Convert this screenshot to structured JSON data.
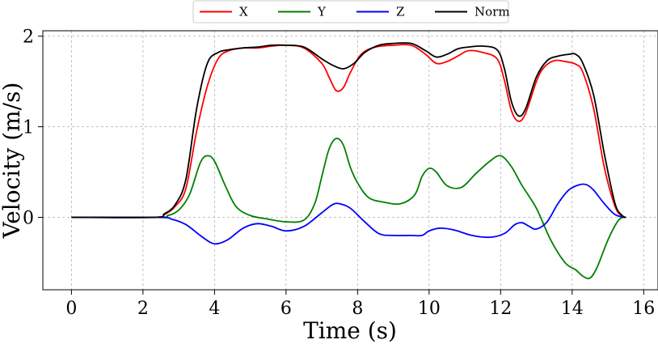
{
  "chart_data": {
    "type": "line",
    "title": "",
    "xlabel": "Time (s)",
    "ylabel": "Velocity (m/s)",
    "xlim": [
      -0.8,
      16.4
    ],
    "ylim": [
      -0.8,
      2.06
    ],
    "grid": true,
    "legend_position": "top-center",
    "xticks": [
      0,
      2,
      4,
      6,
      8,
      10,
      12,
      14,
      16
    ],
    "xtick_labels": [
      "0",
      "2",
      "4",
      "6",
      "8",
      "10",
      "12",
      "14",
      "16"
    ],
    "yticks": [
      0,
      1,
      2
    ],
    "ytick_labels": [
      "0",
      "1",
      "2"
    ],
    "series": [
      {
        "name": "X",
        "color": "#ff0000",
        "x": [
          0,
          2.3,
          2.6,
          2.9,
          3.2,
          3.5,
          3.8,
          4.1,
          4.4,
          4.8,
          5.2,
          5.6,
          6.0,
          6.5,
          7.0,
          7.2,
          7.4,
          7.6,
          7.8,
          8.1,
          8.5,
          9.0,
          9.5,
          9.9,
          10.2,
          10.5,
          10.8,
          11.1,
          11.5,
          11.9,
          12.1,
          12.3,
          12.5,
          12.7,
          13.0,
          13.2,
          13.5,
          13.8,
          14.1,
          14.3,
          14.6,
          14.9,
          15.2,
          15.4,
          15.5
        ],
        "y": [
          0,
          0,
          0.03,
          0.12,
          0.32,
          0.95,
          1.45,
          1.75,
          1.84,
          1.87,
          1.87,
          1.89,
          1.9,
          1.87,
          1.7,
          1.55,
          1.4,
          1.43,
          1.6,
          1.8,
          1.88,
          1.9,
          1.9,
          1.8,
          1.7,
          1.72,
          1.78,
          1.84,
          1.82,
          1.75,
          1.52,
          1.18,
          1.06,
          1.15,
          1.5,
          1.65,
          1.73,
          1.72,
          1.69,
          1.6,
          1.2,
          0.55,
          0.12,
          0.01,
          0
        ]
      },
      {
        "name": "Y",
        "color": "#008000",
        "x": [
          0,
          2.4,
          2.7,
          3.0,
          3.3,
          3.6,
          3.8,
          4.0,
          4.3,
          4.6,
          5.0,
          5.5,
          6.0,
          6.5,
          6.8,
          7.0,
          7.2,
          7.4,
          7.6,
          7.8,
          8.0,
          8.3,
          8.7,
          9.2,
          9.6,
          9.8,
          10.0,
          10.2,
          10.5,
          10.9,
          11.3,
          11.7,
          12.0,
          12.3,
          12.6,
          13.0,
          13.4,
          13.8,
          14.1,
          14.3,
          14.5,
          14.7,
          15.0,
          15.3,
          15.5
        ],
        "y": [
          0,
          0,
          0.02,
          0.08,
          0.25,
          0.6,
          0.68,
          0.62,
          0.35,
          0.12,
          0.02,
          -0.02,
          -0.05,
          -0.03,
          0.15,
          0.45,
          0.75,
          0.87,
          0.8,
          0.55,
          0.38,
          0.22,
          0.17,
          0.15,
          0.25,
          0.45,
          0.54,
          0.5,
          0.35,
          0.33,
          0.48,
          0.62,
          0.68,
          0.56,
          0.35,
          0.1,
          -0.25,
          -0.5,
          -0.58,
          -0.65,
          -0.67,
          -0.55,
          -0.25,
          -0.03,
          0
        ]
      },
      {
        "name": "Z",
        "color": "#0000ff",
        "x": [
          0,
          2.4,
          2.8,
          3.2,
          3.6,
          3.9,
          4.1,
          4.4,
          4.8,
          5.2,
          5.6,
          6.0,
          6.5,
          7.0,
          7.3,
          7.5,
          7.8,
          8.2,
          8.6,
          9.0,
          9.5,
          9.8,
          10.0,
          10.3,
          10.7,
          11.2,
          11.7,
          12.1,
          12.4,
          12.6,
          12.8,
          13.0,
          13.3,
          13.6,
          13.9,
          14.2,
          14.4,
          14.6,
          14.9,
          15.2,
          15.5
        ],
        "y": [
          0,
          0,
          -0.02,
          -0.08,
          -0.2,
          -0.28,
          -0.29,
          -0.24,
          -0.12,
          -0.07,
          -0.1,
          -0.15,
          -0.1,
          0.05,
          0.14,
          0.15,
          0.1,
          -0.05,
          -0.18,
          -0.2,
          -0.2,
          -0.2,
          -0.15,
          -0.12,
          -0.14,
          -0.2,
          -0.22,
          -0.18,
          -0.08,
          -0.06,
          -0.1,
          -0.13,
          -0.05,
          0.15,
          0.3,
          0.36,
          0.36,
          0.3,
          0.15,
          0.03,
          0
        ]
      },
      {
        "name": "Norm",
        "color": "#000000",
        "x": [
          0,
          2.3,
          2.6,
          2.9,
          3.2,
          3.5,
          3.8,
          4.1,
          4.4,
          4.8,
          5.2,
          5.6,
          6.0,
          6.5,
          7.0,
          7.3,
          7.6,
          7.9,
          8.2,
          8.6,
          9.0,
          9.5,
          9.9,
          10.2,
          10.5,
          10.8,
          11.1,
          11.5,
          11.9,
          12.1,
          12.3,
          12.5,
          12.7,
          13.0,
          13.3,
          13.6,
          13.9,
          14.1,
          14.3,
          14.6,
          14.9,
          15.2,
          15.4,
          15.5
        ],
        "y": [
          0,
          0,
          0.04,
          0.14,
          0.42,
          1.2,
          1.7,
          1.82,
          1.85,
          1.87,
          1.88,
          1.9,
          1.9,
          1.88,
          1.75,
          1.68,
          1.64,
          1.7,
          1.82,
          1.9,
          1.92,
          1.92,
          1.84,
          1.77,
          1.8,
          1.86,
          1.88,
          1.89,
          1.85,
          1.65,
          1.28,
          1.12,
          1.2,
          1.55,
          1.73,
          1.78,
          1.8,
          1.8,
          1.7,
          1.35,
          0.7,
          0.15,
          0.02,
          0
        ]
      }
    ]
  }
}
